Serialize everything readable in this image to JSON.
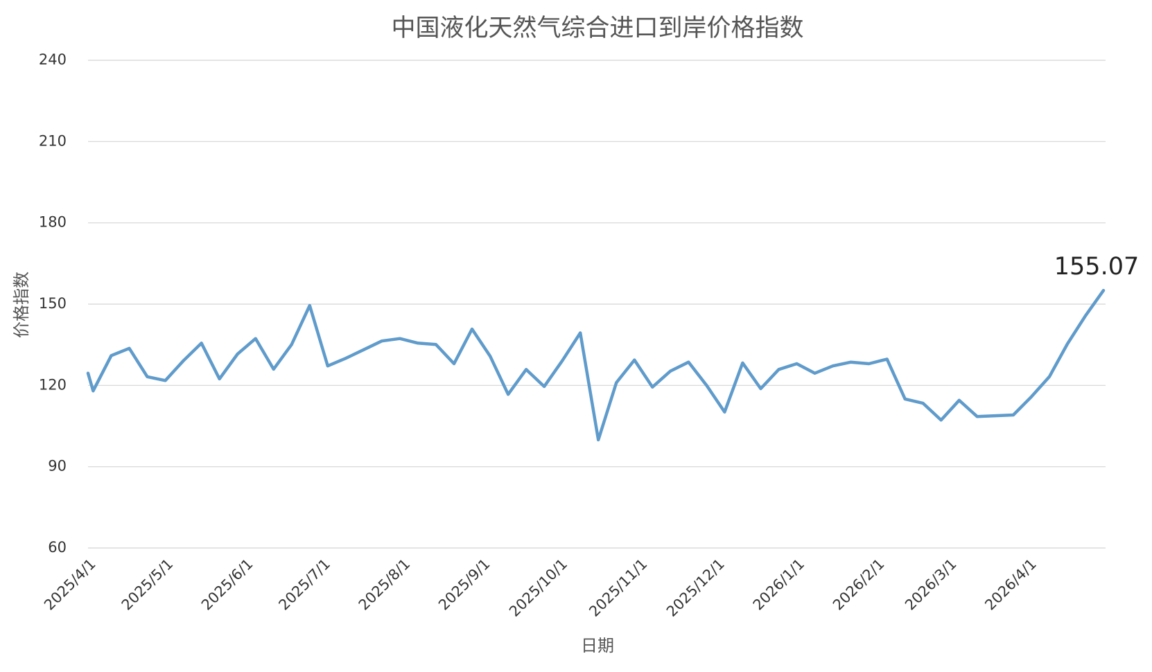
{
  "chart_data": {
    "type": "line",
    "title": "中国液化天然气综合进口到岸价格指数",
    "x_label": "日期",
    "y_label": "价格指数",
    "x": [
      "2025/4/1",
      "2025/4/3",
      "2025/4/10",
      "2025/4/17",
      "2025/4/24",
      "2025/5/1",
      "2025/5/8",
      "2025/5/15",
      "2025/5/22",
      "2025/5/29",
      "2025/6/5",
      "2025/6/12",
      "2025/6/19",
      "2025/6/26",
      "2025/7/3",
      "2025/7/10",
      "2025/7/17",
      "2025/7/24",
      "2025/7/31",
      "2025/8/7",
      "2025/8/14",
      "2025/8/21",
      "2025/8/28",
      "2025/9/4",
      "2025/9/11",
      "2025/9/18",
      "2025/9/25",
      "2025/10/2",
      "2025/10/9",
      "2025/10/16",
      "2025/10/23",
      "2025/10/30",
      "2025/11/6",
      "2025/11/13",
      "2025/11/20",
      "2025/11/27",
      "2025/12/4",
      "2025/12/11",
      "2025/12/18",
      "2025/12/25",
      "2026/1/1",
      "2026/1/8",
      "2026/1/15",
      "2026/1/22",
      "2026/1/29",
      "2026/2/5",
      "2026/2/12",
      "2026/2/19",
      "2026/2/26",
      "2026/3/5",
      "2026/3/12",
      "2026/3/19",
      "2026/3/26",
      "2026/4/2",
      "2026/4/9",
      "2026/4/16",
      "2026/4/23",
      "2026/4/30"
    ],
    "series": [
      {
        "name": "价格指数",
        "color": "#5f9bcb",
        "values": [
          124.5,
          118,
          131,
          133.7,
          123.2,
          121.8,
          129.1,
          135.6,
          122.4,
          131.6,
          137.3,
          126,
          135.1,
          149.5,
          127.2,
          130,
          133.2,
          136.4,
          137.3,
          135.6,
          135.1,
          128,
          140.8,
          130.8,
          116.7,
          125.9,
          119.6,
          129.1,
          139.4,
          99.9,
          121,
          129.4,
          119.4,
          125.3,
          128.6,
          120,
          110.2,
          128.3,
          118.8,
          125.9,
          128,
          124.5,
          127.2,
          128.6,
          128,
          129.7,
          115,
          113.4,
          107.2,
          114.5,
          108.5,
          108.8,
          109.1,
          115.8,
          123.2,
          135.3,
          145.7,
          155.07
        ]
      }
    ],
    "xlim": [
      "2025/4/1",
      "2026/4/30"
    ],
    "xticks": [
      "2025/4/1",
      "2025/5/1",
      "2025/6/1",
      "2025/7/1",
      "2025/8/1",
      "2025/9/1",
      "2025/10/1",
      "2025/11/1",
      "2025/12/1",
      "2026/1/1",
      "2026/2/1",
      "2026/3/1",
      "2026/4/1"
    ],
    "ylim": [
      60,
      240
    ],
    "yticks": [
      60,
      90,
      120,
      150,
      180,
      210,
      240
    ],
    "grid": true
  }
}
